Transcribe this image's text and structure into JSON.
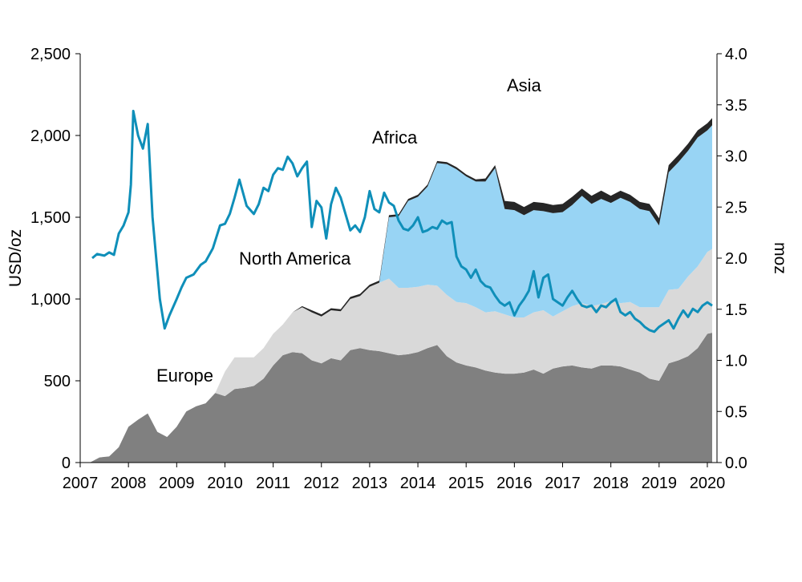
{
  "chart_data": {
    "type": "area",
    "title": "",
    "left_axis": {
      "label": "USD/oz",
      "range": [
        0,
        2500
      ],
      "ticks": [
        "0",
        "500",
        "1,000",
        "1,500",
        "2,000",
        "2,500"
      ],
      "tick_values": [
        0,
        500,
        1000,
        1500,
        2000,
        2500
      ]
    },
    "right_axis": {
      "label": "moz",
      "range": [
        0,
        4.0
      ],
      "ticks": [
        "0.0",
        "0.5",
        "1.0",
        "1.5",
        "2.0",
        "2.5",
        "3.0",
        "3.5",
        "4.0"
      ],
      "tick_values": [
        0,
        0.5,
        1.0,
        1.5,
        2.0,
        2.5,
        3.0,
        3.5,
        4.0
      ]
    },
    "x_axis": {
      "range": [
        2007,
        2020.2
      ],
      "ticks": [
        "2007",
        "2008",
        "2009",
        "2010",
        "2011",
        "2012",
        "2013",
        "2014",
        "2015",
        "2016",
        "2017",
        "2018",
        "2019",
        "2020"
      ],
      "tick_values": [
        2007,
        2008,
        2009,
        2010,
        2011,
        2012,
        2013,
        2014,
        2015,
        2016,
        2017,
        2018,
        2019,
        2020
      ]
    },
    "x": [
      2007.2,
      2007.4,
      2007.6,
      2007.8,
      2008.0,
      2008.2,
      2008.4,
      2008.6,
      2008.8,
      2009.0,
      2009.2,
      2009.4,
      2009.6,
      2009.8,
      2010.0,
      2010.2,
      2010.4,
      2010.6,
      2010.8,
      2011.0,
      2011.2,
      2011.4,
      2011.6,
      2011.8,
      2012.0,
      2012.2,
      2012.4,
      2012.6,
      2012.8,
      2013.0,
      2013.2,
      2013.4,
      2013.6,
      2013.8,
      2014.0,
      2014.2,
      2014.4,
      2014.6,
      2014.8,
      2015.0,
      2015.2,
      2015.4,
      2015.6,
      2015.8,
      2016.0,
      2016.2,
      2016.4,
      2016.6,
      2016.8,
      2017.0,
      2017.2,
      2017.4,
      2017.6,
      2017.8,
      2018.0,
      2018.2,
      2018.4,
      2018.6,
      2018.8,
      2019.0,
      2019.2,
      2019.4,
      2019.6,
      2019.8,
      2020.0,
      2020.1
    ],
    "series": [
      {
        "name": "Europe",
        "color": "#808080",
        "values": [
          0.0,
          0.05,
          0.06,
          0.15,
          0.35,
          0.42,
          0.48,
          0.3,
          0.25,
          0.35,
          0.5,
          0.55,
          0.58,
          0.68,
          0.65,
          0.72,
          0.73,
          0.75,
          0.82,
          0.95,
          1.05,
          1.08,
          1.07,
          1.0,
          0.97,
          1.02,
          1.0,
          1.1,
          1.12,
          1.1,
          1.09,
          1.07,
          1.05,
          1.06,
          1.08,
          1.12,
          1.15,
          1.04,
          0.98,
          0.95,
          0.93,
          0.9,
          0.88,
          0.87,
          0.87,
          0.88,
          0.91,
          0.87,
          0.92,
          0.94,
          0.95,
          0.93,
          0.92,
          0.95,
          0.95,
          0.94,
          0.91,
          0.88,
          0.82,
          0.8,
          0.97,
          1.0,
          1.04,
          1.12,
          1.26,
          1.27
        ]
      },
      {
        "name": "North America",
        "color": "#d9d9d9",
        "values": [
          0.0,
          0.0,
          0.0,
          0.0,
          0.0,
          0.0,
          0.0,
          0.0,
          0.0,
          0.0,
          0.0,
          0.0,
          0.0,
          0.0,
          0.24,
          0.31,
          0.3,
          0.28,
          0.3,
          0.31,
          0.3,
          0.39,
          0.45,
          0.47,
          0.46,
          0.47,
          0.48,
          0.5,
          0.51,
          0.62,
          0.67,
          0.73,
          0.66,
          0.65,
          0.64,
          0.62,
          0.58,
          0.6,
          0.59,
          0.61,
          0.59,
          0.57,
          0.6,
          0.58,
          0.55,
          0.54,
          0.56,
          0.62,
          0.51,
          0.54,
          0.58,
          0.63,
          0.61,
          0.6,
          0.63,
          0.62,
          0.66,
          0.64,
          0.7,
          0.72,
          0.72,
          0.7,
          0.78,
          0.8,
          0.8,
          0.82
        ]
      },
      {
        "name": "Africa",
        "color": "#d9d9d9",
        "values": [
          0.0,
          0.0,
          0.0,
          0.0,
          0.0,
          0.0,
          0.0,
          0.0,
          0.0,
          0.0,
          0.0,
          0.0,
          0.0,
          0.0,
          0.0,
          0.0,
          0.0,
          0.0,
          0.0,
          0.0,
          0.0,
          0.0,
          0.0,
          0.0,
          0.0,
          0.0,
          0.0,
          0.0,
          0.0,
          0.0,
          0.0,
          0.0,
          0.0,
          0.0,
          0.0,
          0.0,
          0.0,
          0.0,
          0.0,
          0.0,
          0.0,
          0.0,
          0.0,
          0.0,
          0.0,
          0.0,
          0.0,
          0.0,
          0.0,
          0.0,
          0.0,
          0.0,
          0.0,
          0.0,
          0.0,
          0.0,
          0.0,
          0.0,
          0.0,
          0.0,
          0.0,
          0.0,
          0.0,
          0.0,
          0.0,
          0.0
        ]
      },
      {
        "name": "Asia",
        "color": "#98d4f4",
        "values": [
          0.0,
          0.0,
          0.0,
          0.0,
          0.0,
          0.0,
          0.0,
          0.0,
          0.0,
          0.0,
          0.0,
          0.0,
          0.0,
          0.0,
          0.0,
          0.0,
          0.0,
          0.0,
          0.0,
          0.0,
          0.0,
          0.0,
          0.0,
          0.0,
          0.0,
          0.0,
          0.0,
          0.0,
          0.0,
          0.0,
          0.0,
          0.6,
          0.7,
          0.85,
          0.88,
          0.96,
          1.2,
          1.28,
          1.3,
          1.24,
          1.23,
          1.28,
          1.4,
          1.03,
          1.05,
          1.0,
          1.0,
          0.97,
          1.01,
          0.97,
          0.99,
          1.05,
          1.0,
          1.03,
          0.96,
          1.03,
          0.98,
          0.96,
          0.94,
          0.8,
          1.15,
          1.24,
          1.23,
          1.26,
          1.19,
          1.21
        ]
      },
      {
        "name": "",
        "color": "#262626",
        "values": [
          0.0,
          0.0,
          0.0,
          0.0,
          0.0,
          0.0,
          0.0,
          0.0,
          0.0,
          0.0,
          0.0,
          0.0,
          0.0,
          0.0,
          0.0,
          0.0,
          0.0,
          0.0,
          0.0,
          0.0,
          0.0,
          0.0,
          0.01,
          0.02,
          0.02,
          0.02,
          0.02,
          0.02,
          0.02,
          0.02,
          0.02,
          0.02,
          0.02,
          0.02,
          0.02,
          0.02,
          0.02,
          0.02,
          0.02,
          0.02,
          0.02,
          0.03,
          0.03,
          0.08,
          0.08,
          0.08,
          0.08,
          0.08,
          0.08,
          0.08,
          0.08,
          0.07,
          0.08,
          0.08,
          0.07,
          0.07,
          0.07,
          0.07,
          0.07,
          0.07,
          0.07,
          0.07,
          0.07,
          0.07,
          0.07,
          0.07
        ]
      }
    ],
    "price": {
      "name": "",
      "color": "#0f8fb9",
      "x": [
        2007.25,
        2007.35,
        2007.5,
        2007.6,
        2007.7,
        2007.8,
        2007.9,
        2008.0,
        2008.05,
        2008.1,
        2008.2,
        2008.3,
        2008.4,
        2008.5,
        2008.65,
        2008.75,
        2008.85,
        2009.0,
        2009.1,
        2009.2,
        2009.35,
        2009.5,
        2009.6,
        2009.75,
        2009.9,
        2010.0,
        2010.1,
        2010.2,
        2010.3,
        2010.45,
        2010.6,
        2010.7,
        2010.8,
        2010.9,
        2011.0,
        2011.1,
        2011.2,
        2011.3,
        2011.4,
        2011.5,
        2011.6,
        2011.7,
        2011.8,
        2011.9,
        2012.0,
        2012.1,
        2012.2,
        2012.3,
        2012.4,
        2012.5,
        2012.6,
        2012.7,
        2012.8,
        2012.9,
        2013.0,
        2013.1,
        2013.2,
        2013.3,
        2013.4,
        2013.5,
        2013.6,
        2013.7,
        2013.8,
        2013.9,
        2014.0,
        2014.1,
        2014.2,
        2014.3,
        2014.4,
        2014.5,
        2014.6,
        2014.7,
        2014.8,
        2014.9,
        2015.0,
        2015.1,
        2015.2,
        2015.3,
        2015.4,
        2015.5,
        2015.6,
        2015.7,
        2015.8,
        2015.9,
        2016.0,
        2016.1,
        2016.2,
        2016.3,
        2016.4,
        2016.5,
        2016.6,
        2016.7,
        2016.8,
        2016.9,
        2017.0,
        2017.1,
        2017.2,
        2017.3,
        2017.4,
        2017.5,
        2017.6,
        2017.7,
        2017.8,
        2017.9,
        2018.0,
        2018.1,
        2018.2,
        2018.3,
        2018.4,
        2018.5,
        2018.6,
        2018.7,
        2018.8,
        2018.9,
        2019.0,
        2019.1,
        2019.2,
        2019.3,
        2019.4,
        2019.5,
        2019.6,
        2019.7,
        2019.8,
        2019.9,
        2020.0,
        2020.1
      ],
      "values": [
        1250,
        1275,
        1265,
        1285,
        1270,
        1400,
        1450,
        1530,
        1700,
        2150,
        2000,
        1920,
        2070,
        1500,
        1000,
        820,
        900,
        1000,
        1070,
        1130,
        1150,
        1210,
        1230,
        1310,
        1450,
        1460,
        1520,
        1620,
        1730,
        1570,
        1520,
        1580,
        1680,
        1660,
        1760,
        1800,
        1790,
        1870,
        1830,
        1750,
        1800,
        1840,
        1440,
        1600,
        1560,
        1370,
        1580,
        1680,
        1620,
        1520,
        1420,
        1450,
        1410,
        1500,
        1660,
        1550,
        1530,
        1650,
        1590,
        1570,
        1480,
        1430,
        1420,
        1450,
        1500,
        1410,
        1420,
        1440,
        1430,
        1480,
        1460,
        1470,
        1260,
        1200,
        1180,
        1130,
        1180,
        1110,
        1080,
        1070,
        1020,
        980,
        960,
        980,
        900,
        960,
        1000,
        1050,
        1170,
        1010,
        1130,
        1150,
        1000,
        980,
        960,
        1010,
        1050,
        1000,
        960,
        950,
        960,
        920,
        960,
        950,
        980,
        1000,
        920,
        900,
        920,
        880,
        860,
        830,
        810,
        800,
        830,
        850,
        870,
        820,
        880,
        930,
        890,
        940,
        920,
        960,
        980,
        960
      ]
    },
    "annotations": [
      "Asia",
      "Africa",
      "North America",
      "Europe"
    ]
  }
}
